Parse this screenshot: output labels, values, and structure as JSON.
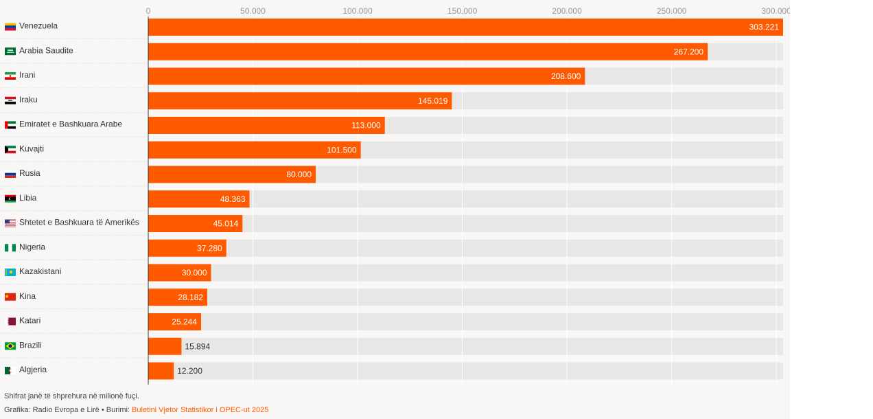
{
  "chart_data": {
    "type": "bar",
    "orientation": "horizontal",
    "categories": [
      "Venezuela",
      "Arabia Saudite",
      "Irani",
      "Iraku",
      "Emiratet e Bashkuara Arabe",
      "Kuvajti",
      "Rusia",
      "Libia",
      "Shtetet e Bashkuara të Amerikës",
      "Nigeria",
      "Kazakistani",
      "Kina",
      "Katari",
      "Brazili",
      "Algjeria"
    ],
    "values": [
      303221,
      267200,
      208600,
      145019,
      113000,
      101500,
      80000,
      48363,
      45014,
      37280,
      30000,
      28182,
      25244,
      15894,
      12200
    ],
    "value_labels": [
      "303.221",
      "267.200",
      "208.600",
      "145.019",
      "113.000",
      "101.500",
      "80.000",
      "48.363",
      "45.014",
      "37.280",
      "30.000",
      "28.182",
      "25.244",
      "15.894",
      "12.200"
    ],
    "ticks": [
      0,
      50000,
      100000,
      150000,
      200000,
      250000,
      300000
    ],
    "tick_labels": [
      "0",
      "50.000",
      "100.000",
      "150.000",
      "200.000",
      "250.000",
      "300.000"
    ],
    "xlim": [
      0,
      303221
    ],
    "axis_position": "top",
    "grid": true,
    "flags": [
      "flag-venezuela-icon",
      "flag-saudi-arabia-icon",
      "flag-iran-icon",
      "flag-iraq-icon",
      "flag-uae-icon",
      "flag-kuwait-icon",
      "flag-russia-icon",
      "flag-libya-icon",
      "flag-usa-icon",
      "flag-nigeria-icon",
      "flag-kazakhstan-icon",
      "flag-china-icon",
      "flag-qatar-icon",
      "flag-brazil-icon",
      "flag-algeria-icon"
    ],
    "colors": {
      "bar": "#ff5a00",
      "track": "#e8e7e5",
      "label_inside": "#ffffff",
      "label_outside": "#333333"
    }
  },
  "footer": {
    "note": "Shifrat janë të shprehura në milionë fuçi.",
    "credit_prefix": "Grafika: Radio Evropa e Lirë • Burimi: ",
    "source_link": "Buletini Vjetor Statistikor i OPEC-ut 2025"
  }
}
